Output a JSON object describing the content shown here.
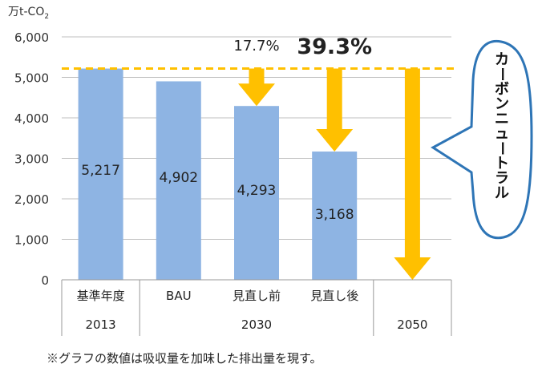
{
  "chart_data": {
    "type": "bar",
    "ylabel_main": "万t-CO",
    "ylabel_sub": "2",
    "ylim": [
      0,
      6000
    ],
    "yticks": [
      "0",
      "1,000",
      "2,000",
      "3,000",
      "4,000",
      "5,000",
      "6,000"
    ],
    "categories": [
      "基準年度",
      "BAU",
      "見直し前",
      "見直し後",
      ""
    ],
    "values": [
      5217,
      4902,
      4293,
      3168,
      null
    ],
    "value_labels": [
      "5,217",
      "4,902",
      "4,293",
      "3,168",
      ""
    ],
    "groups": [
      {
        "label": "2013",
        "span": 1
      },
      {
        "label": "2030",
        "span": 3
      },
      {
        "label": "2050",
        "span": 1
      }
    ],
    "reference_line": 5217,
    "arrows": [
      {
        "category_index": 2,
        "from": 5217,
        "to": 4293,
        "label": "17.7%",
        "bold": false
      },
      {
        "category_index": 3,
        "from": 5217,
        "to": 3168,
        "label": "39.3%",
        "bold": true
      },
      {
        "category_index": 4,
        "from": 5217,
        "to": 0,
        "label": "",
        "bold": false
      }
    ],
    "callout": "カーボンニュートラル",
    "bar_color": "#8eb4e3",
    "arrow_color": "#ffc000",
    "grid": true
  },
  "footnote": "※グラフの数値は吸収量を加味した排出量を現す。"
}
